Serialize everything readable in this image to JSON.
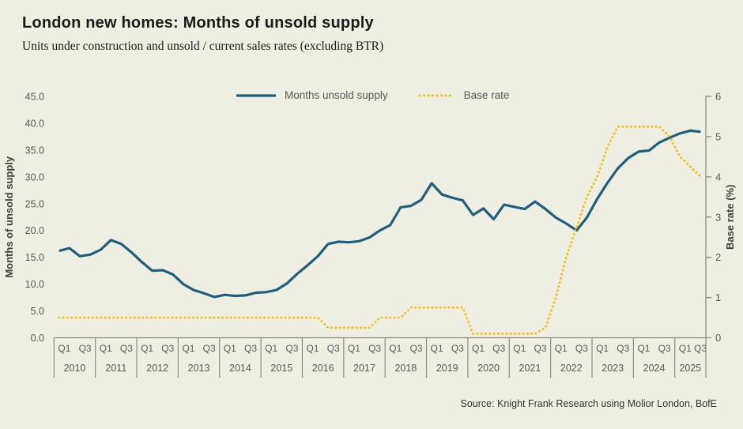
{
  "title": "London new homes: Months of unsold supply",
  "subtitle": "Units under construction and unsold / current sales rates (excluding BTR)",
  "source": "Source: Knight Frank Research using Molior London, BofE",
  "colors": {
    "background": "#efeee2",
    "supply_line": "#1e5f7e",
    "base_rate_line": "#f7bd00",
    "axis_line": "#8c8c84",
    "tick_text": "#595959",
    "axis_title_text": "#404040"
  },
  "legend": {
    "items": [
      {
        "label": "Months unsold supply",
        "color": "#1e5f7e",
        "style": "solid"
      },
      {
        "label": "Base rate",
        "color": "#f7bd00",
        "style": "dotted"
      }
    ]
  },
  "chart_data": {
    "type": "line",
    "title": "London new homes: Months of unsold supply",
    "subtitle": "Units under construction and unsold / current sales rates (excluding BTR)",
    "x_years": [
      2010,
      2011,
      2012,
      2013,
      2014,
      2015,
      2016,
      2017,
      2018,
      2019,
      2020,
      2021,
      2022,
      2023,
      2024,
      2025
    ],
    "quarters_per_year": 4,
    "last_year_quarters": 3,
    "quarter_tick_labels": [
      "Q1",
      "Q3"
    ],
    "left_axis": {
      "title": "Months of unsold supply",
      "min": 0,
      "max": 45,
      "step": 5,
      "decimals": 1
    },
    "right_axis": {
      "title": "Base rate (%)",
      "min": 0,
      "max": 6,
      "step": 1,
      "decimals": 0
    },
    "grid": false,
    "legend_position": "top-center",
    "series": [
      {
        "name": "Months unsold supply",
        "axis": "left",
        "style": "solid",
        "color": "#1e5f7e",
        "values": [
          16.2,
          16.7,
          15.2,
          15.5,
          16.4,
          18.2,
          17.5,
          15.9,
          14.1,
          12.5,
          12.6,
          11.8,
          10.0,
          8.9,
          8.3,
          7.6,
          8.0,
          7.8,
          7.9,
          8.4,
          8.5,
          8.9,
          10.1,
          11.9,
          13.5,
          15.2,
          17.5,
          17.9,
          17.8,
          18.0,
          18.7,
          20.0,
          21.0,
          24.3,
          24.6,
          25.7,
          28.8,
          26.7,
          26.1,
          25.6,
          22.9,
          24.1,
          22.1,
          24.8,
          24.4,
          24.0,
          25.4,
          24.0,
          22.4,
          21.3,
          20.0,
          22.4,
          25.9,
          28.9,
          31.6,
          33.5,
          34.7,
          34.9,
          36.4,
          37.3,
          38.1,
          38.6,
          38.4
        ]
      },
      {
        "name": "Base rate",
        "axis": "right",
        "style": "dotted",
        "color": "#f7bd00",
        "values": [
          0.5,
          0.5,
          0.5,
          0.5,
          0.5,
          0.5,
          0.5,
          0.5,
          0.5,
          0.5,
          0.5,
          0.5,
          0.5,
          0.5,
          0.5,
          0.5,
          0.5,
          0.5,
          0.5,
          0.5,
          0.5,
          0.5,
          0.5,
          0.5,
          0.5,
          0.5,
          0.25,
          0.25,
          0.25,
          0.25,
          0.25,
          0.5,
          0.5,
          0.5,
          0.75,
          0.75,
          0.75,
          0.75,
          0.75,
          0.75,
          0.1,
          0.1,
          0.1,
          0.1,
          0.1,
          0.1,
          0.1,
          0.25,
          1.0,
          2.0,
          2.75,
          3.5,
          4.0,
          4.75,
          5.25,
          5.25,
          5.25,
          5.25,
          5.25,
          5.0,
          4.5,
          4.25,
          4.0
        ]
      }
    ]
  }
}
